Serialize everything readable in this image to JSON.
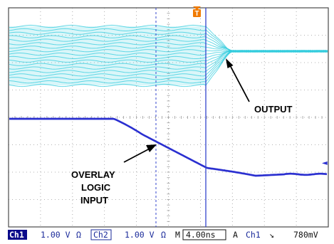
{
  "scope": {
    "trigger_marker": "T",
    "right_marker": "◄",
    "annotations": {
      "output": "OUTPUT",
      "input_lines": [
        "OVERLAY",
        "LOGIC",
        "INPUT"
      ]
    },
    "colors": {
      "ch1": "#33ccdd",
      "ch2": "#2a2fd0",
      "grid": "#9a9a9a",
      "cursor": "#3344cc",
      "trigger": "#f07a00",
      "badge_bg": "#0a0a8a",
      "status_text": "#1a2a9a"
    }
  },
  "status": {
    "ch1_label": "Ch1",
    "ch1_scale": "1.00 V",
    "ch1_coupling": "Ω",
    "ch2_label": "Ch2",
    "ch2_scale": "1.00 V",
    "ch2_coupling": "Ω",
    "timebase_label": "M",
    "timebase": "4.00ns",
    "trigger_mode": "A",
    "trigger_source": "Ch1",
    "trigger_slope": "↘",
    "trigger_level": "780mV"
  }
}
